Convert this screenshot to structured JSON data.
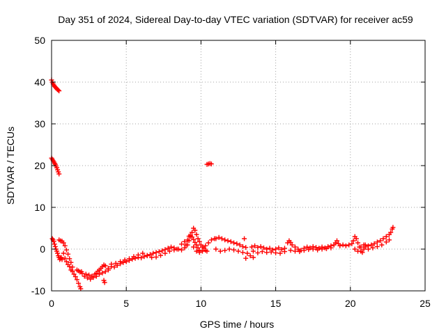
{
  "chart_data": {
    "type": "scatter",
    "title": "Day 351 of 2024, Sidereal Day-to-day VTEC variation (SDTVAR) for receiver ac59",
    "xlabel": "GPS time / hours",
    "ylabel": "SDTVAR / TECUs",
    "xlim": [
      0,
      25
    ],
    "ylim": [
      -10,
      50
    ],
    "xticks": [
      0,
      5,
      10,
      15,
      20,
      25
    ],
    "yticks": [
      -10,
      0,
      10,
      20,
      30,
      40,
      50
    ],
    "xtick_labels": [
      "0",
      "5",
      "10",
      "15",
      "20",
      "25"
    ],
    "ytick_labels": [
      "-10",
      "0",
      "10",
      "20",
      "30",
      "40",
      "50"
    ],
    "grid": true,
    "marker": "+",
    "series": [
      {
        "name": "SDTVAR",
        "color": "#ff0000",
        "points": [
          [
            0.0,
            40.5
          ],
          [
            0.05,
            40.0
          ],
          [
            0.1,
            39.6
          ],
          [
            0.15,
            39.3
          ],
          [
            0.2,
            39.0
          ],
          [
            0.25,
            38.8
          ],
          [
            0.3,
            38.6
          ],
          [
            0.35,
            38.4
          ],
          [
            0.4,
            38.2
          ],
          [
            0.45,
            38.1
          ],
          [
            0.5,
            37.9
          ],
          [
            0.0,
            21.8
          ],
          [
            0.05,
            21.5
          ],
          [
            0.1,
            21.2
          ],
          [
            0.15,
            20.9
          ],
          [
            0.2,
            20.6
          ],
          [
            0.25,
            20.3
          ],
          [
            0.3,
            19.9
          ],
          [
            0.35,
            19.5
          ],
          [
            0.4,
            19.0
          ],
          [
            0.45,
            18.5
          ],
          [
            0.5,
            18.0
          ],
          [
            10.4,
            20.3
          ],
          [
            10.5,
            20.4
          ],
          [
            10.6,
            20.5
          ],
          [
            10.7,
            20.4
          ],
          [
            0.05,
            2.5
          ],
          [
            0.1,
            2.2
          ],
          [
            0.15,
            1.8
          ],
          [
            0.2,
            1.2
          ],
          [
            0.25,
            0.6
          ],
          [
            0.3,
            0.0
          ],
          [
            0.35,
            -0.5
          ],
          [
            0.4,
            -1.0
          ],
          [
            0.45,
            -1.6
          ],
          [
            0.5,
            -2.0
          ],
          [
            0.55,
            -2.5
          ],
          [
            0.6,
            -2.2
          ],
          [
            0.65,
            -2.0
          ],
          [
            0.7,
            -2.5
          ],
          [
            0.5,
            2.2
          ],
          [
            0.6,
            2.0
          ],
          [
            0.7,
            1.9
          ],
          [
            0.8,
            1.5
          ],
          [
            0.9,
            0.8
          ],
          [
            1.0,
            -0.2
          ],
          [
            1.1,
            -1.2
          ],
          [
            1.2,
            -2.3
          ],
          [
            1.3,
            -3.2
          ],
          [
            1.4,
            -4.3
          ],
          [
            0.8,
            -1.0
          ],
          [
            0.9,
            -2.2
          ],
          [
            1.0,
            -3.0
          ],
          [
            1.1,
            -3.7
          ],
          [
            1.2,
            -4.2
          ],
          [
            1.3,
            -5.0
          ],
          [
            1.4,
            -5.3
          ],
          [
            1.5,
            -6.0
          ],
          [
            1.6,
            -6.6
          ],
          [
            1.7,
            -7.3
          ],
          [
            1.8,
            -8.2
          ],
          [
            1.9,
            -9.0
          ],
          [
            1.95,
            -9.5
          ],
          [
            1.7,
            -5.0
          ],
          [
            1.8,
            -5.2
          ],
          [
            1.9,
            -5.5
          ],
          [
            2.0,
            -5.4
          ],
          [
            2.05,
            -5.8
          ],
          [
            2.3,
            -6.0
          ],
          [
            2.5,
            -6.2
          ],
          [
            2.7,
            -6.5
          ],
          [
            2.9,
            -6.0
          ],
          [
            3.0,
            -5.8
          ],
          [
            3.1,
            -5.3
          ],
          [
            3.2,
            -5.0
          ],
          [
            3.3,
            -4.6
          ],
          [
            3.4,
            -4.2
          ],
          [
            3.5,
            -3.8
          ],
          [
            3.6,
            -4.0
          ],
          [
            3.5,
            -7.5
          ],
          [
            3.55,
            -8.0
          ],
          [
            2.2,
            -6.5
          ],
          [
            2.4,
            -6.9
          ],
          [
            2.6,
            -7.2
          ],
          [
            2.8,
            -6.8
          ],
          [
            3.0,
            -6.5
          ],
          [
            3.2,
            -6.0
          ],
          [
            3.4,
            -5.7
          ],
          [
            3.6,
            -5.4
          ],
          [
            3.8,
            -5.0
          ],
          [
            3.8,
            -4.6
          ],
          [
            4.0,
            -4.2
          ],
          [
            4.2,
            -4.3
          ],
          [
            4.4,
            -3.9
          ],
          [
            4.6,
            -3.5
          ],
          [
            4.8,
            -3.2
          ],
          [
            5.0,
            -3.0
          ],
          [
            5.2,
            -2.7
          ],
          [
            5.4,
            -2.4
          ],
          [
            5.6,
            -2.2
          ],
          [
            5.8,
            -2.0
          ],
          [
            6.0,
            -2.1
          ],
          [
            6.2,
            -1.8
          ],
          [
            6.4,
            -1.6
          ],
          [
            6.6,
            -1.3
          ],
          [
            6.8,
            -1.0
          ],
          [
            7.0,
            -0.8
          ],
          [
            7.2,
            -0.6
          ],
          [
            7.4,
            -0.4
          ],
          [
            7.6,
            -0.1
          ],
          [
            7.8,
            0.2
          ],
          [
            8.0,
            0.5
          ],
          [
            8.2,
            0.3
          ],
          [
            8.4,
            0.0
          ],
          [
            4.0,
            -3.6
          ],
          [
            4.3,
            -3.4
          ],
          [
            4.6,
            -3.0
          ],
          [
            4.9,
            -2.6
          ],
          [
            5.2,
            -2.3
          ],
          [
            5.5,
            -1.8
          ],
          [
            5.8,
            -1.4
          ],
          [
            6.1,
            -1.0
          ],
          [
            6.4,
            -1.5
          ],
          [
            6.7,
            -2.0
          ],
          [
            7.0,
            -1.9
          ],
          [
            7.3,
            -1.5
          ],
          [
            7.6,
            -1.0
          ],
          [
            7.9,
            -0.5
          ],
          [
            8.2,
            -0.2
          ],
          [
            8.5,
            0.0
          ],
          [
            8.7,
            -0.2
          ],
          [
            8.9,
            0.3
          ],
          [
            9.1,
            1.0
          ],
          [
            9.2,
            2.0
          ],
          [
            9.3,
            3.0
          ],
          [
            9.4,
            4.0
          ],
          [
            9.5,
            5.0
          ],
          [
            9.6,
            4.5
          ],
          [
            9.7,
            3.5
          ],
          [
            9.8,
            2.5
          ],
          [
            9.9,
            1.8
          ],
          [
            10.0,
            1.0
          ],
          [
            10.1,
            0.5
          ],
          [
            10.2,
            0.2
          ],
          [
            10.3,
            -0.3
          ],
          [
            10.4,
            -0.5
          ],
          [
            9.0,
            1.0
          ],
          [
            9.1,
            2.2
          ],
          [
            9.2,
            3.1
          ],
          [
            9.3,
            3.3
          ],
          [
            9.4,
            2.9
          ],
          [
            9.5,
            2.3
          ],
          [
            9.6,
            1.6
          ],
          [
            9.7,
            1.0
          ],
          [
            9.8,
            0.3
          ],
          [
            9.9,
            -0.3
          ],
          [
            8.7,
            1.2
          ],
          [
            8.9,
            1.8
          ],
          [
            9.5,
            0.5
          ],
          [
            9.7,
            -0.5
          ],
          [
            9.9,
            -0.8
          ],
          [
            10.1,
            -0.5
          ],
          [
            10.3,
            0.8
          ],
          [
            10.5,
            1.5
          ],
          [
            10.7,
            2.2
          ],
          [
            10.9,
            2.5
          ],
          [
            11.0,
            2.5
          ],
          [
            11.2,
            2.8
          ],
          [
            11.4,
            2.5
          ],
          [
            11.6,
            2.2
          ],
          [
            11.8,
            2.0
          ],
          [
            12.0,
            1.8
          ],
          [
            12.2,
            1.5
          ],
          [
            12.4,
            1.3
          ],
          [
            12.6,
            1.0
          ],
          [
            12.8,
            0.6
          ],
          [
            13.0,
            0.4
          ],
          [
            12.9,
            2.5
          ],
          [
            11.0,
            0.0
          ],
          [
            11.3,
            -0.5
          ],
          [
            11.6,
            -0.3
          ],
          [
            11.9,
            0.0
          ],
          [
            12.2,
            -0.2
          ],
          [
            12.5,
            -0.5
          ],
          [
            12.8,
            -0.8
          ],
          [
            13.1,
            -1.0
          ],
          [
            13.3,
            -1.6
          ],
          [
            13.5,
            -2.0
          ],
          [
            13.0,
            -2.2
          ],
          [
            13.4,
            0.5
          ],
          [
            13.6,
            0.8
          ],
          [
            13.8,
            0.4
          ],
          [
            14.0,
            0.6
          ],
          [
            14.2,
            0.3
          ],
          [
            14.4,
            0.0
          ],
          [
            14.6,
            0.2
          ],
          [
            14.8,
            -0.2
          ],
          [
            15.0,
            0.0
          ],
          [
            15.2,
            0.3
          ],
          [
            15.4,
            -0.1
          ],
          [
            15.6,
            0.2
          ],
          [
            13.5,
            -0.5
          ],
          [
            13.8,
            -0.9
          ],
          [
            14.1,
            -0.6
          ],
          [
            14.4,
            -0.8
          ],
          [
            14.7,
            -0.7
          ],
          [
            15.0,
            -0.9
          ],
          [
            15.3,
            -1.0
          ],
          [
            15.6,
            -0.6
          ],
          [
            15.8,
            1.5
          ],
          [
            15.9,
            2.0
          ],
          [
            16.0,
            1.6
          ],
          [
            16.1,
            1.0
          ],
          [
            16.3,
            0.5
          ],
          [
            16.5,
            0.0
          ],
          [
            16.7,
            -0.3
          ],
          [
            16.9,
            0.2
          ],
          [
            17.1,
            0.5
          ],
          [
            17.3,
            0.3
          ],
          [
            17.5,
            0.6
          ],
          [
            17.7,
            0.4
          ],
          [
            17.9,
            0.2
          ],
          [
            18.1,
            0.5
          ],
          [
            18.3,
            0.3
          ],
          [
            18.5,
            0.6
          ],
          [
            18.7,
            0.8
          ],
          [
            18.9,
            1.0
          ],
          [
            16.0,
            -0.3
          ],
          [
            16.3,
            -0.5
          ],
          [
            16.6,
            -0.6
          ],
          [
            16.9,
            -0.3
          ],
          [
            17.2,
            -0.1
          ],
          [
            17.5,
            0.0
          ],
          [
            17.8,
            -0.2
          ],
          [
            18.1,
            0.0
          ],
          [
            18.4,
            0.1
          ],
          [
            18.7,
            0.3
          ],
          [
            19.0,
            1.5
          ],
          [
            19.1,
            2.0
          ],
          [
            19.2,
            1.3
          ],
          [
            19.3,
            0.8
          ],
          [
            19.5,
            1.0
          ],
          [
            19.7,
            0.8
          ],
          [
            19.9,
            1.0
          ],
          [
            20.1,
            1.3
          ],
          [
            20.2,
            2.0
          ],
          [
            20.3,
            3.0
          ],
          [
            20.4,
            2.5
          ],
          [
            20.5,
            1.5
          ],
          [
            20.6,
            0.5
          ],
          [
            20.7,
            -0.5
          ],
          [
            20.8,
            -0.8
          ],
          [
            20.9,
            0.0
          ],
          [
            21.0,
            0.5
          ],
          [
            20.3,
            0.0
          ],
          [
            20.5,
            -0.5
          ],
          [
            20.7,
            0.5
          ],
          [
            20.9,
            1.0
          ],
          [
            21.0,
            1.0
          ],
          [
            21.2,
            0.8
          ],
          [
            21.4,
            1.0
          ],
          [
            21.6,
            1.3
          ],
          [
            21.8,
            1.7
          ],
          [
            22.0,
            2.0
          ],
          [
            22.2,
            2.5
          ],
          [
            22.4,
            3.0
          ],
          [
            22.6,
            3.5
          ],
          [
            22.7,
            4.0
          ],
          [
            22.8,
            4.8
          ],
          [
            22.85,
            5.2
          ],
          [
            21.2,
            0.0
          ],
          [
            21.5,
            0.3
          ],
          [
            21.8,
            0.6
          ],
          [
            22.1,
            1.0
          ],
          [
            22.4,
            1.7
          ],
          [
            22.6,
            2.2
          ]
        ]
      }
    ]
  }
}
